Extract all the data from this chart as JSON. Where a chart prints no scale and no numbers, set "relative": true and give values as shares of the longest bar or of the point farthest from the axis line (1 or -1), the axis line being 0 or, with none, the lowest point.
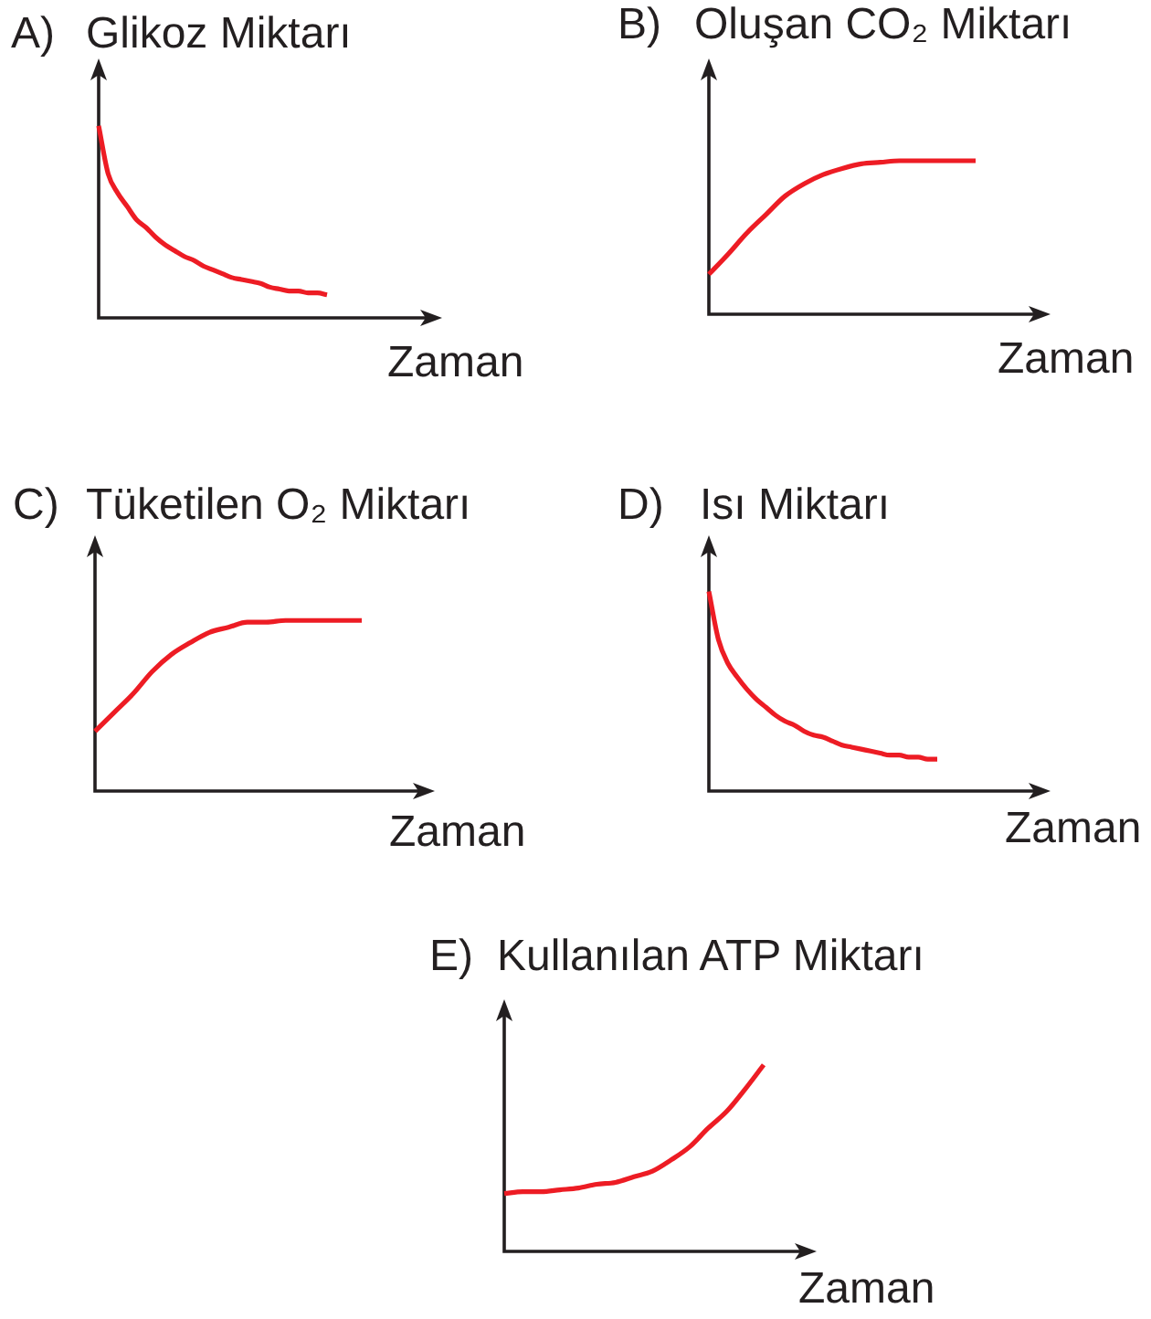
{
  "chart_data": [
    {
      "type": "line",
      "title": "A)",
      "ylabel": "Glikoz Miktarı",
      "xlabel": "Zaman",
      "relative": true,
      "marker": "none",
      "categories": [
        null,
        null,
        null,
        null,
        null,
        null,
        null,
        null,
        null,
        null,
        null,
        null,
        null,
        null,
        null,
        null,
        null,
        null,
        null,
        null,
        null,
        null,
        null,
        null,
        null
      ],
      "series": [
        {
          "color": "#ed1c24",
          "values": [
            1,
            0.75,
            0.65,
            0.58,
            0.51,
            0.47,
            0.42,
            0.38,
            0.35,
            0.32,
            0.3,
            0.27,
            0.25,
            0.23,
            0.21,
            0.2,
            0.19,
            0.18,
            0.16,
            0.15,
            0.14,
            0.14,
            0.13,
            0.13,
            0.12
          ]
        }
      ]
    },
    {
      "type": "line",
      "title": "B)",
      "ylabel": "Oluşan CO₂ Miktarı",
      "xlabel": "Zaman",
      "relative": true,
      "marker": "none",
      "categories": [
        null,
        null,
        null,
        null,
        null,
        null,
        null,
        null,
        null,
        null,
        null,
        null,
        null,
        null,
        null
      ],
      "series": [
        {
          "color": "#ed1c24",
          "values": [
            0.26,
            0.39,
            0.53,
            0.65,
            0.77,
            0.85,
            0.91,
            0.95,
            0.98,
            0.99,
            1,
            1,
            1,
            1,
            1
          ]
        }
      ]
    },
    {
      "type": "line",
      "title": "C)",
      "ylabel": "Tüketilen O₂ Miktarı",
      "xlabel": "Zaman",
      "relative": true,
      "marker": "none",
      "categories": [
        null,
        null,
        null,
        null,
        null,
        null,
        null,
        null,
        null,
        null,
        null,
        null,
        null,
        null,
        null
      ],
      "series": [
        {
          "color": "#ed1c24",
          "values": [
            0.35,
            0.46,
            0.57,
            0.7,
            0.8,
            0.87,
            0.93,
            0.96,
            0.99,
            0.99,
            1,
            1,
            1,
            1,
            1
          ]
        }
      ]
    },
    {
      "type": "line",
      "title": "D)",
      "ylabel": "Isı Miktarı",
      "xlabel": "Zaman",
      "relative": true,
      "marker": "none",
      "categories": [
        null,
        null,
        null,
        null,
        null,
        null,
        null,
        null,
        null,
        null,
        null,
        null,
        null,
        null,
        null,
        null,
        null,
        null,
        null,
        null,
        null,
        null,
        null,
        null,
        null
      ],
      "series": [
        {
          "color": "#ed1c24",
          "values": [
            1,
            0.76,
            0.64,
            0.57,
            0.51,
            0.46,
            0.42,
            0.38,
            0.35,
            0.33,
            0.3,
            0.28,
            0.27,
            0.25,
            0.23,
            0.22,
            0.21,
            0.2,
            0.19,
            0.18,
            0.18,
            0.17,
            0.17,
            0.16,
            0.16
          ]
        }
      ]
    },
    {
      "type": "line",
      "title": "E)",
      "ylabel": "Kullanılan ATP Miktarı",
      "xlabel": "Zaman",
      "relative": true,
      "marker": "none",
      "categories": [
        null,
        null,
        null,
        null,
        null,
        null,
        null,
        null,
        null,
        null,
        null,
        null,
        null,
        null,
        null
      ],
      "series": [
        {
          "color": "#ed1c24",
          "values": [
            0.31,
            0.32,
            0.32,
            0.33,
            0.34,
            0.36,
            0.37,
            0.4,
            0.43,
            0.49,
            0.56,
            0.66,
            0.75,
            0.87,
            1
          ]
        }
      ]
    }
  ]
}
